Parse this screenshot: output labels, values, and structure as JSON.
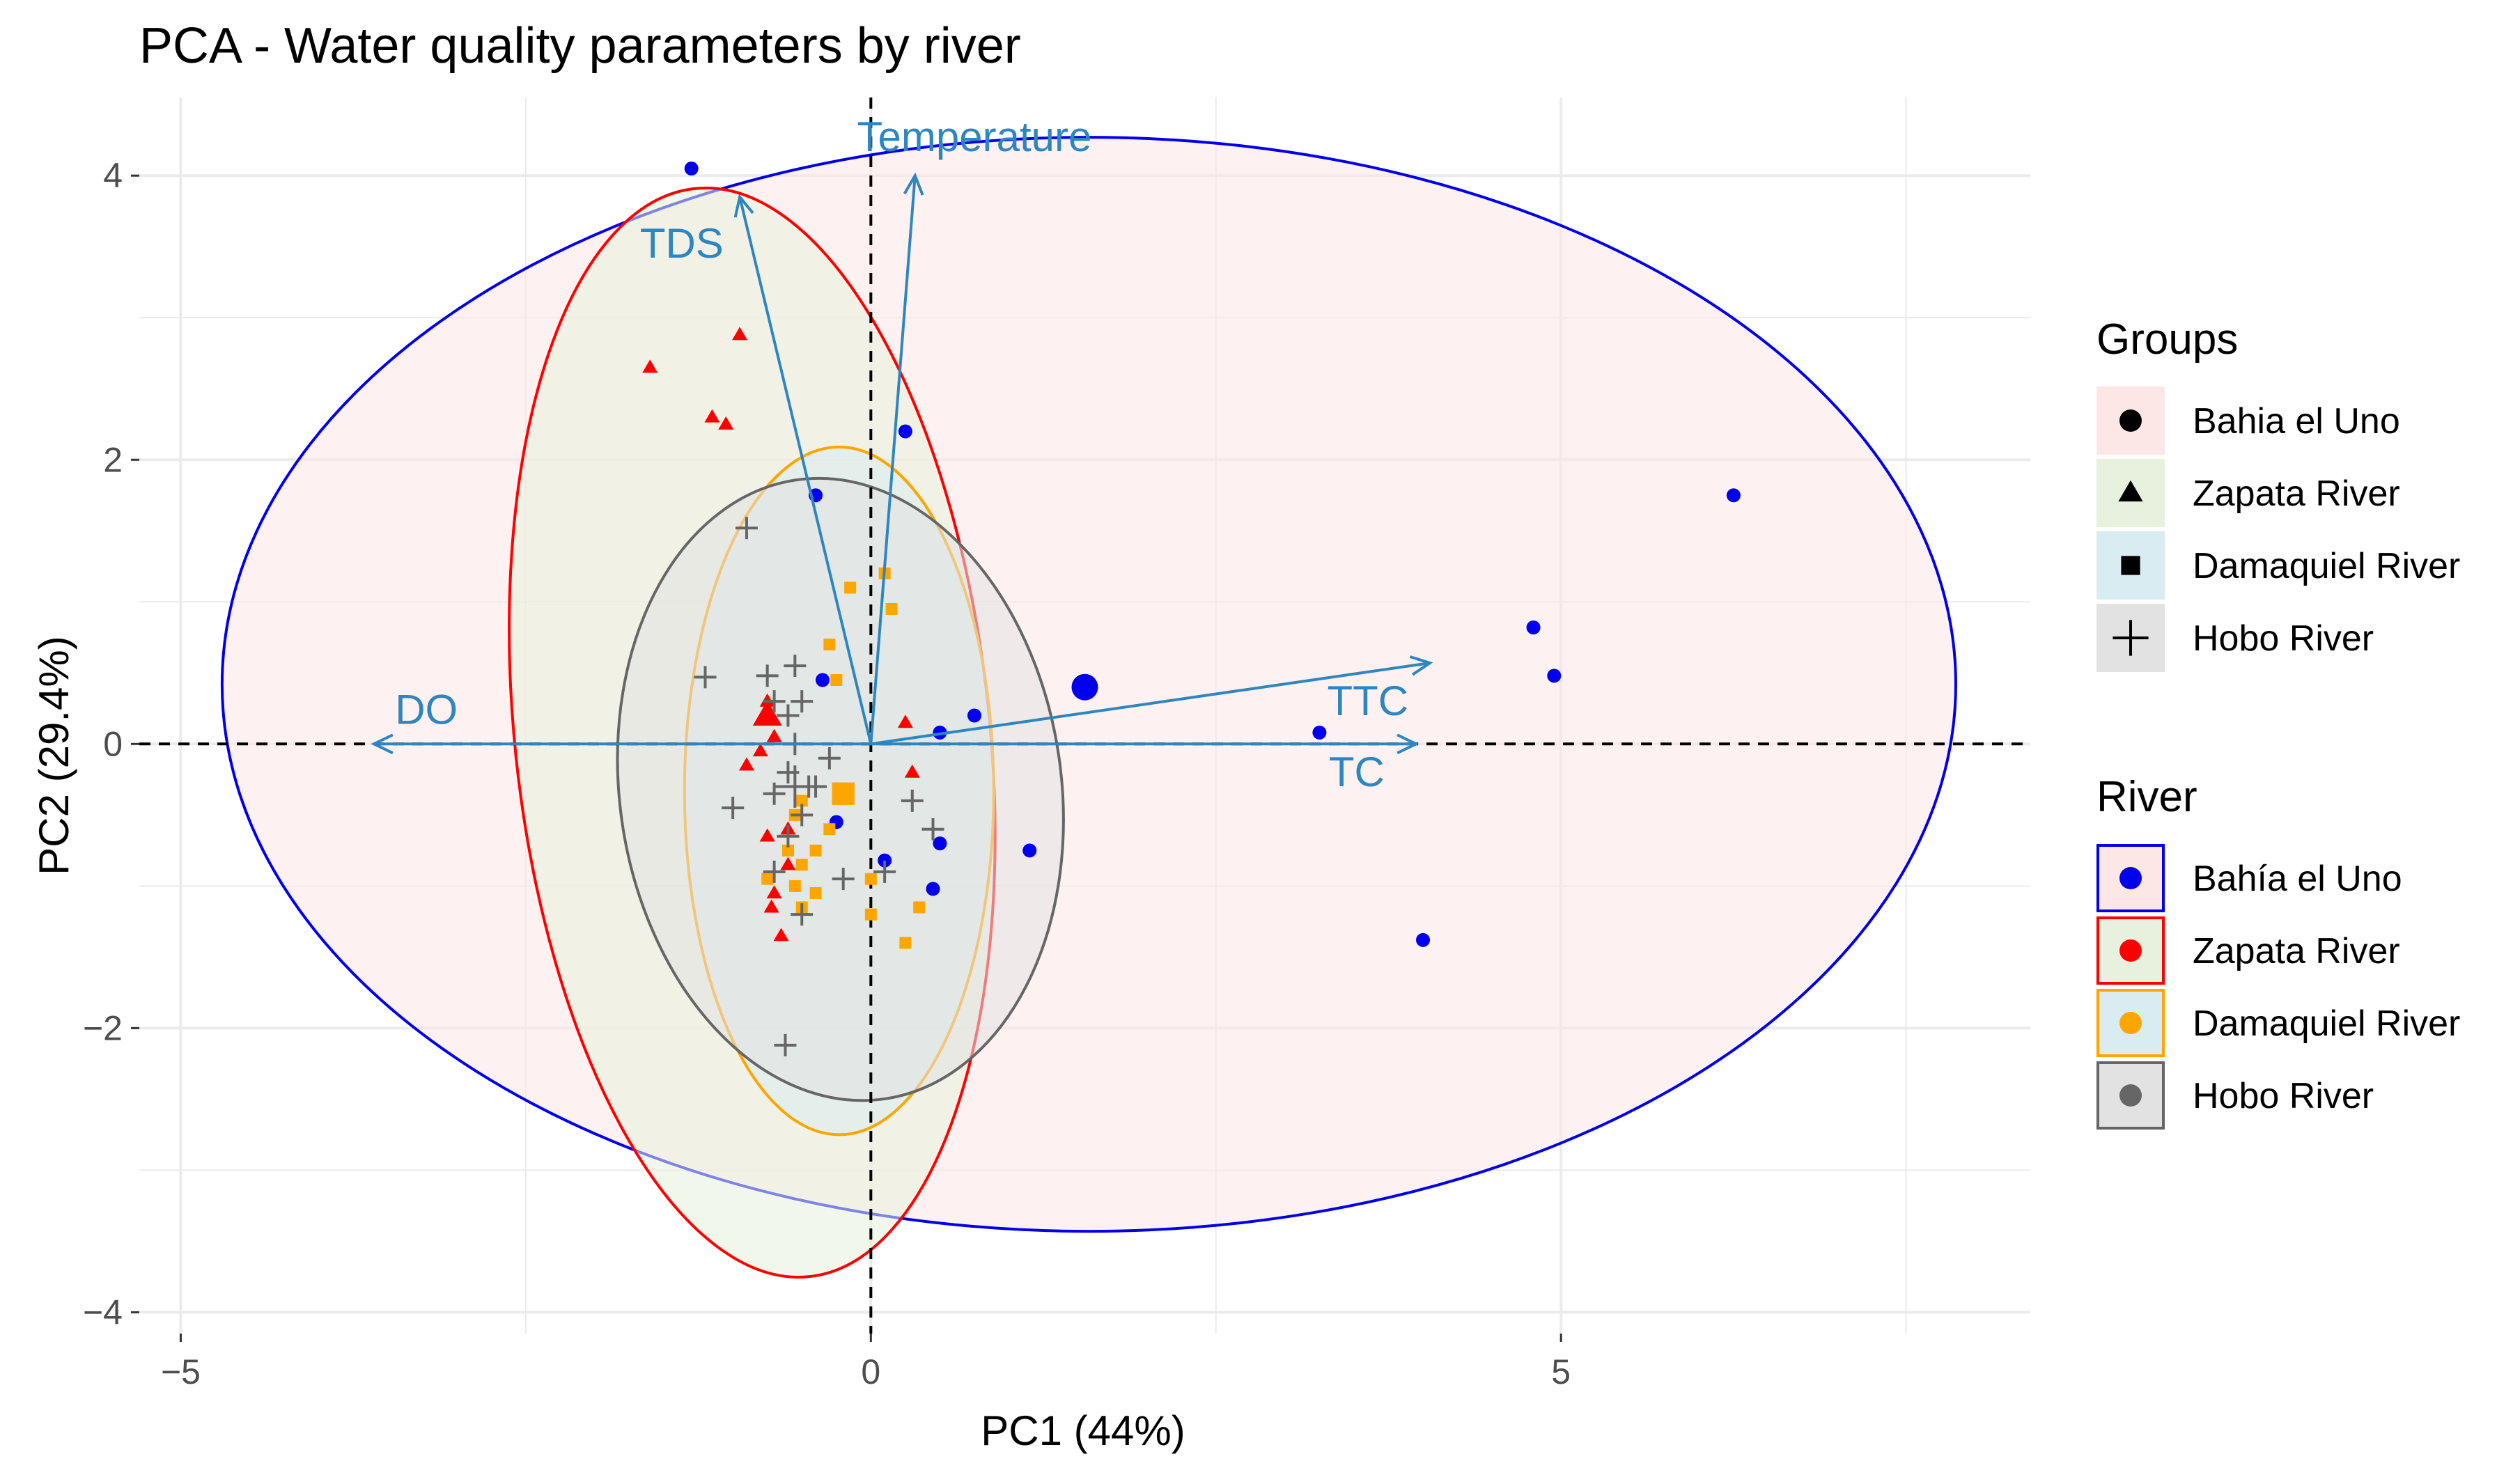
{
  "chart_data": {
    "type": "scatter",
    "title": "PCA - Water quality parameters by river",
    "xlabel": "PC1 (44%)",
    "ylabel": "PC2 (29.4%)",
    "xlim": [
      -5.3,
      8.4
    ],
    "ylim": [
      -4.15,
      4.55
    ],
    "x_ticks": [
      -5,
      0,
      5
    ],
    "x_tick_labels": [
      "−5",
      "0",
      "5"
    ],
    "y_ticks": [
      4,
      2,
      0,
      -2,
      -4
    ],
    "y_tick_labels": [
      "4",
      "2",
      "0",
      "−2",
      "−4"
    ],
    "grid": true,
    "reference_lines": {
      "x": 0,
      "y": 0,
      "style": "dashed"
    },
    "legends": {
      "groups": {
        "title": "Groups",
        "entries": [
          {
            "label": "Bahia el Uno",
            "shape": "circle"
          },
          {
            "label": "Zapata River",
            "shape": "triangle"
          },
          {
            "label": "Damaquiel River",
            "shape": "square"
          },
          {
            "label": "Hobo River",
            "shape": "plus"
          }
        ]
      },
      "river": {
        "title": "River",
        "entries": [
          {
            "label": "Bahía el Uno",
            "color": "#0000ee",
            "fill": "#fde6e6"
          },
          {
            "label": "Zapata River",
            "color": "#ff0000",
            "fill": "#e8f1dd"
          },
          {
            "label": "Damaquiel River",
            "color": "#ffa500",
            "fill": "#d9ecf1"
          },
          {
            "label": "Hobo River",
            "color": "#666666",
            "fill": "#e2e2e2"
          }
        ]
      }
    },
    "series": [
      {
        "name": "Bahía el Uno",
        "shape": "circle",
        "color": "#0000ee",
        "fill": "#fde6e6",
        "points": [
          [
            -1.3,
            4.05
          ],
          [
            0.25,
            2.2
          ],
          [
            -0.4,
            1.75
          ],
          [
            6.25,
            1.75
          ],
          [
            4.8,
            0.82
          ],
          [
            4.95,
            0.48
          ],
          [
            -0.35,
            0.45
          ],
          [
            0.75,
            0.2
          ],
          [
            0.5,
            0.08
          ],
          [
            3.25,
            0.08
          ],
          [
            0.5,
            -0.7
          ],
          [
            -0.25,
            -0.55
          ],
          [
            0.1,
            -0.82
          ],
          [
            0.45,
            -1.02
          ],
          [
            1.15,
            -0.75
          ],
          [
            4.0,
            -1.38
          ]
        ],
        "centroid": [
          1.55,
          0.4
        ],
        "ellipse": {
          "cx": 1.58,
          "cy": 0.42,
          "rx": 6.28,
          "ry": 3.85,
          "angle": 0
        }
      },
      {
        "name": "Zapata River",
        "shape": "triangle",
        "color": "#ff0000",
        "fill": "#e8f1dd",
        "points": [
          [
            -1.6,
            2.65
          ],
          [
            -0.95,
            2.88
          ],
          [
            -1.15,
            2.3
          ],
          [
            -1.05,
            2.25
          ],
          [
            -0.75,
            0.3
          ],
          [
            -0.7,
            0.05
          ],
          [
            -0.8,
            -0.05
          ],
          [
            -0.9,
            -0.15
          ],
          [
            -0.6,
            -0.6
          ],
          [
            -0.75,
            -0.65
          ],
          [
            -0.6,
            -0.85
          ],
          [
            -0.7,
            -1.05
          ],
          [
            -0.72,
            -1.15
          ],
          [
            -0.65,
            -1.35
          ],
          [
            0.25,
            0.15
          ],
          [
            0.3,
            -0.2
          ]
        ],
        "centroid": [
          -0.75,
          0.2
        ],
        "ellipse": {
          "cx": -0.86,
          "cy": 0.08,
          "rx": 1.72,
          "ry": 3.85,
          "angle": -6
        }
      },
      {
        "name": "Damaquiel River",
        "shape": "square",
        "color": "#ffa500",
        "fill": "#d9ecf1",
        "points": [
          [
            0.1,
            1.2
          ],
          [
            -0.15,
            1.1
          ],
          [
            0.15,
            0.95
          ],
          [
            -0.3,
            0.7
          ],
          [
            -0.25,
            0.45
          ],
          [
            -0.3,
            -0.6
          ],
          [
            -0.5,
            -0.4
          ],
          [
            -0.4,
            -0.75
          ],
          [
            -0.5,
            -0.85
          ],
          [
            -0.6,
            -0.75
          ],
          [
            -0.75,
            -0.95
          ],
          [
            -0.55,
            -1.0
          ],
          [
            -0.4,
            -1.05
          ],
          [
            -0.5,
            -1.15
          ],
          [
            0.0,
            -0.95
          ],
          [
            0.0,
            -1.2
          ],
          [
            0.35,
            -1.15
          ],
          [
            0.25,
            -1.4
          ],
          [
            -0.55,
            -0.5
          ]
        ],
        "centroid": [
          -0.2,
          -0.35
        ],
        "ellipse": {
          "cx": -0.23,
          "cy": -0.33,
          "rx": 1.12,
          "ry": 2.42,
          "angle": 0
        }
      },
      {
        "name": "Hobo River",
        "shape": "plus",
        "color": "#666666",
        "fill": "#e2e2e2",
        "points": [
          [
            -0.9,
            1.52
          ],
          [
            -1.2,
            0.47
          ],
          [
            -0.75,
            0.48
          ],
          [
            -0.55,
            0.55
          ],
          [
            -0.7,
            0.3
          ],
          [
            -0.5,
            0.3
          ],
          [
            -0.6,
            0.2
          ],
          [
            -0.55,
            0.0
          ],
          [
            -0.6,
            -0.2
          ],
          [
            -0.45,
            -0.3
          ],
          [
            -0.7,
            -0.35
          ],
          [
            -0.5,
            -0.5
          ],
          [
            -1.0,
            -0.45
          ],
          [
            -0.6,
            -0.65
          ],
          [
            -0.7,
            -0.9
          ],
          [
            -0.5,
            -1.2
          ],
          [
            -0.62,
            -2.12
          ],
          [
            -0.3,
            -0.1
          ],
          [
            0.1,
            -0.9
          ],
          [
            -0.2,
            -0.95
          ],
          [
            0.3,
            -0.4
          ],
          [
            0.45,
            -0.6
          ],
          [
            -0.4,
            -0.3
          ]
        ],
        "centroid": [
          -0.55,
          -0.3
        ],
        "ellipse": {
          "cx": -0.22,
          "cy": -0.32,
          "rx": 1.6,
          "ry": 2.2,
          "angle": -8
        }
      }
    ],
    "variable_vectors": [
      {
        "name": "Temperature",
        "x": 0.32,
        "y": 4.0,
        "label_x": 0.75,
        "label_y": 4.25
      },
      {
        "name": "TDS",
        "x": -0.95,
        "y": 3.85,
        "label_x": -1.37,
        "label_y": 3.5
      },
      {
        "name": "TTC",
        "x": 4.05,
        "y": 0.57,
        "label_x": 3.6,
        "label_y": 0.28
      },
      {
        "name": "TC",
        "x": 3.95,
        "y": 0.0,
        "label_x": 3.52,
        "label_y": -0.22
      },
      {
        "name": "DO",
        "x": -3.6,
        "y": 0.0,
        "label_x": -3.22,
        "label_y": 0.22
      }
    ],
    "vector_color": "#2e86c1"
  }
}
